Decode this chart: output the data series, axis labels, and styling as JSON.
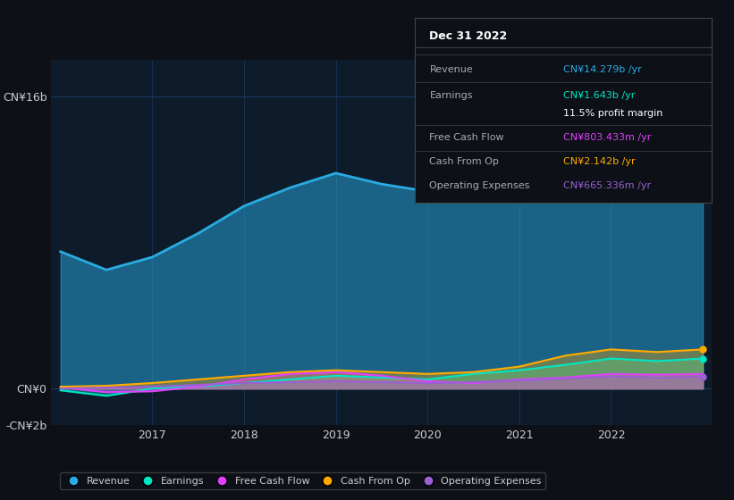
{
  "bg_color": "#0d1117",
  "plot_bg_color": "#0d1b2a",
  "grid_color": "#1e3a5f",
  "text_color": "#cccccc",
  "title_color": "#ffffff",
  "years": [
    2016.0,
    2016.5,
    2017.0,
    2017.5,
    2018.0,
    2018.5,
    2019.0,
    2019.5,
    2020.0,
    2020.5,
    2021.0,
    2021.5,
    2022.0,
    2022.5,
    2023.0
  ],
  "revenue": [
    7.5,
    6.5,
    7.2,
    8.5,
    10.0,
    11.0,
    11.8,
    11.2,
    10.8,
    11.5,
    13.0,
    15.5,
    14.279,
    14.5,
    14.279
  ],
  "earnings": [
    -0.1,
    -0.4,
    0.0,
    0.1,
    0.3,
    0.5,
    0.7,
    0.6,
    0.5,
    0.8,
    1.0,
    1.3,
    1.643,
    1.5,
    1.643
  ],
  "free_cash_flow": [
    0.05,
    -0.2,
    -0.15,
    0.1,
    0.5,
    0.8,
    0.9,
    0.7,
    0.4,
    0.3,
    0.5,
    0.6,
    0.803,
    0.75,
    0.803
  ],
  "cash_from_op": [
    0.1,
    0.15,
    0.3,
    0.5,
    0.7,
    0.9,
    1.0,
    0.9,
    0.8,
    0.9,
    1.2,
    1.8,
    2.142,
    2.0,
    2.142
  ],
  "operating_expenses": [
    0.0,
    0.05,
    0.1,
    0.2,
    0.3,
    0.35,
    0.4,
    0.35,
    0.3,
    0.35,
    0.45,
    0.55,
    0.665,
    0.6,
    0.665
  ],
  "revenue_color": "#29abe2",
  "earnings_color": "#00e5c3",
  "free_cash_flow_color": "#e040fb",
  "cash_from_op_color": "#ffaa00",
  "operating_expenses_color": "#9c5fd4",
  "ylim": [
    -2,
    18
  ],
  "yticks": [
    -2,
    0,
    16
  ],
  "ytick_labels": [
    "-CN¥2b",
    "CN¥0",
    "CN¥16b"
  ],
  "xticks": [
    2017,
    2018,
    2019,
    2020,
    2021,
    2022
  ],
  "box_title": "Dec 31 2022",
  "legend_items": [
    "Revenue",
    "Earnings",
    "Free Cash Flow",
    "Cash From Op",
    "Operating Expenses"
  ],
  "box_rows": [
    {
      "label": "Revenue",
      "value": "CN¥14.279b /yr",
      "value_color": "#29abe2"
    },
    {
      "label": "Earnings",
      "value": "CN¥1.643b /yr",
      "value_color": "#00e5c3"
    },
    {
      "label": "",
      "value": "11.5% profit margin",
      "value_color": "#ffffff"
    },
    {
      "label": "Free Cash Flow",
      "value": "CN¥803.433m /yr",
      "value_color": "#e040fb"
    },
    {
      "label": "Cash From Op",
      "value": "CN¥2.142b /yr",
      "value_color": "#ffaa00"
    },
    {
      "label": "Operating Expenses",
      "value": "CN¥665.336m /yr",
      "value_color": "#9c5fd4"
    }
  ]
}
